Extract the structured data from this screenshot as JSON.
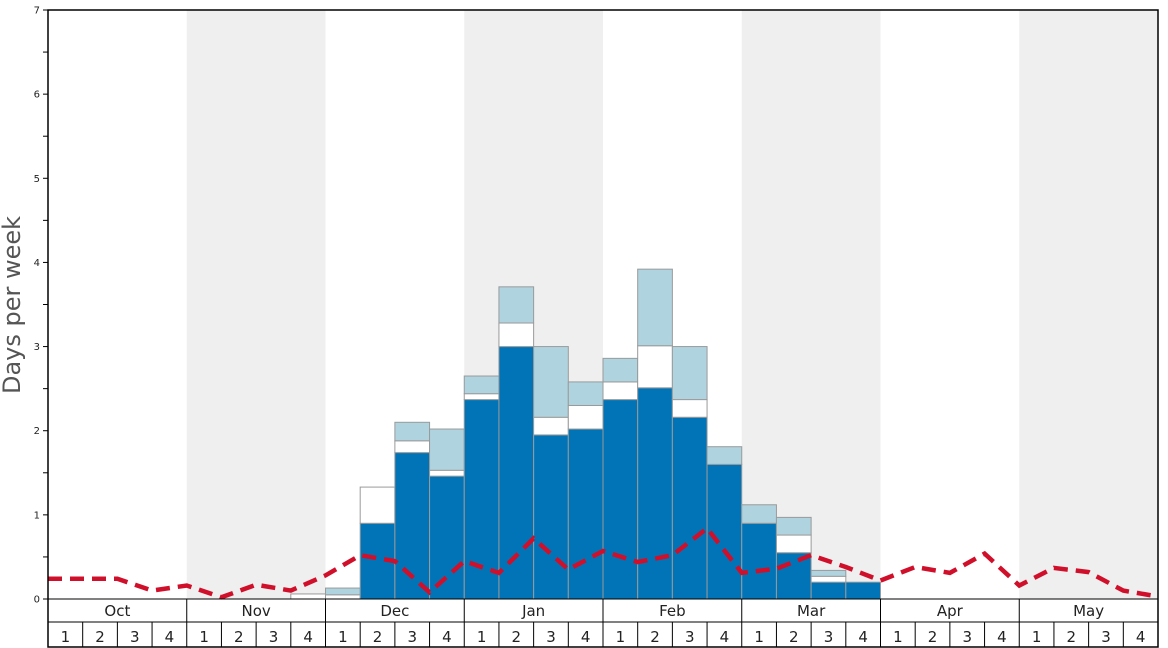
{
  "chart_data": {
    "type": "bar",
    "ylabel": "Days per week",
    "ylim": [
      0,
      7
    ],
    "yticks": [
      0,
      1,
      2,
      3,
      4,
      5,
      6,
      7
    ],
    "months": [
      "Oct",
      "Nov",
      "Dec",
      "Jan",
      "Feb",
      "Mar",
      "Apr",
      "May"
    ],
    "week_labels": [
      "1",
      "2",
      "3",
      "4"
    ],
    "colors": {
      "dark_bar": "#0074b7",
      "white_bar": "#ffffff",
      "light_bar": "#afd4e0",
      "dashed_line": "#d0102a",
      "band_shade": "#efefef"
    },
    "series": [
      {
        "values": [
          0,
          0,
          0,
          0,
          0,
          0,
          0,
          0,
          0,
          0.9,
          1.74,
          1.46,
          2.37,
          3.0,
          1.95,
          2.02,
          2.37,
          2.51,
          2.16,
          1.6,
          0.9,
          0.55,
          0.2,
          0.2,
          0,
          0,
          0,
          0,
          0,
          0,
          0,
          0
        ]
      },
      {
        "values": [
          0,
          0,
          0,
          0,
          0,
          0,
          0,
          0.06,
          0.05,
          0.43,
          0.14,
          0.07,
          0.07,
          0.28,
          0.21,
          0.28,
          0.21,
          0.5,
          0.21,
          0,
          0,
          0.21,
          0.07,
          0,
          0,
          0,
          0,
          0,
          0,
          0,
          0,
          0
        ]
      },
      {
        "values": [
          0,
          0,
          0,
          0,
          0,
          0,
          0,
          0,
          0.08,
          0,
          0.22,
          0.49,
          0.21,
          0.43,
          0.84,
          0.28,
          0.28,
          0.91,
          0.63,
          0.21,
          0.22,
          0.21,
          0.07,
          0,
          0,
          0,
          0,
          0,
          0,
          0,
          0,
          0
        ]
      }
    ],
    "line": {
      "values": [
        0.24,
        0.24,
        0.24,
        0.1,
        0.16,
        0.02,
        0.17,
        0.1,
        0.28,
        0.52,
        0.45,
        0.08,
        0.45,
        0.31,
        0.72,
        0.35,
        0.57,
        0.44,
        0.52,
        0.84,
        0.31,
        0.36,
        0.52,
        0.38,
        0.22,
        0.38,
        0.31,
        0.54,
        0.16,
        0.37,
        0.32,
        0.1,
        0.03
      ]
    }
  }
}
